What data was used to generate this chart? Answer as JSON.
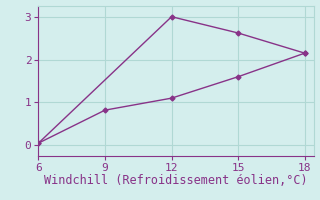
{
  "line1_x": [
    6,
    12,
    15,
    18
  ],
  "line1_y": [
    0.05,
    3.0,
    2.62,
    2.15
  ],
  "line2_x": [
    6,
    9,
    12,
    15,
    18
  ],
  "line2_y": [
    0.05,
    0.82,
    1.1,
    1.6,
    2.15
  ],
  "line_color": "#883388",
  "bg_color": "#d4eeed",
  "grid_color": "#b0d8d4",
  "xlabel": "Windchill (Refroidissement éolien,°C)",
  "xlabel_color": "#883388",
  "xticks": [
    6,
    9,
    12,
    15,
    18
  ],
  "yticks": [
    0,
    1,
    2,
    3
  ],
  "xlim": [
    6,
    18.4
  ],
  "ylim": [
    -0.25,
    3.25
  ],
  "tick_label_color": "#883388",
  "marker": "D",
  "marker_size": 2.5,
  "line_width": 1.0,
  "xlabel_fontsize": 8.5,
  "tick_fontsize": 8
}
